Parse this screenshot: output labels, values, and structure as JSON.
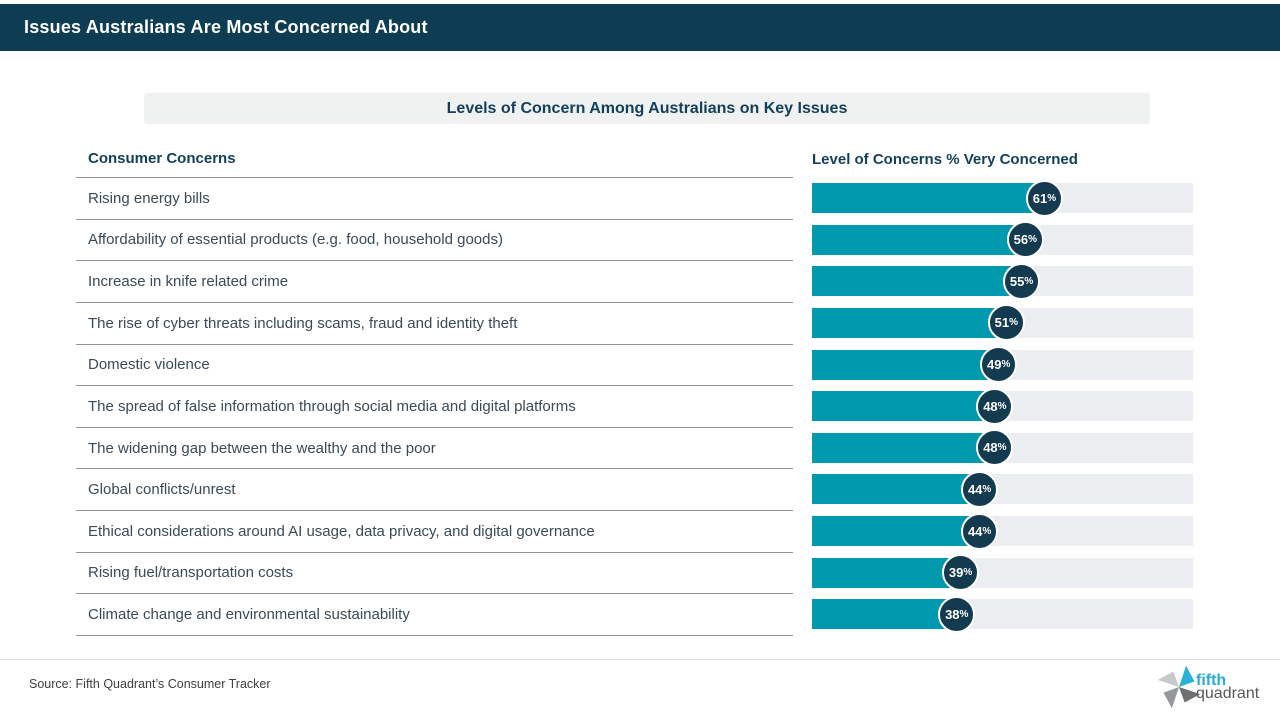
{
  "header": {
    "title": "Issues Australians Are Most Concerned About"
  },
  "chart": {
    "banner_title": "Levels of Concern Among Australians on Key Issues",
    "left_header": "Consumer Concerns",
    "right_header": "Level of Concerns % Very Concerned"
  },
  "chart_data": {
    "type": "bar",
    "orientation": "horizontal",
    "title": "Levels of Concern Among Australians on Key Issues",
    "xlabel": "Level of Concerns % Very Concerned",
    "ylabel": "Consumer Concerns",
    "xlim": [
      0,
      100
    ],
    "value_suffix": "%",
    "categories": [
      "Rising energy bills",
      "Affordability of essential products (e.g. food, household goods)",
      "Increase in knife related crime",
      "The rise of cyber threats including scams, fraud and identity theft",
      "Domestic violence",
      "The spread of false information through social media and digital platforms",
      "The widening gap between the wealthy and the poor",
      "Global conflicts/unrest",
      "Ethical considerations around AI usage, data privacy, and digital governance",
      "Rising fuel/transportation costs",
      "Climate change and environmental sustainability"
    ],
    "values": [
      61,
      56,
      55,
      51,
      49,
      48,
      48,
      44,
      44,
      39,
      38
    ]
  },
  "footer": {
    "source": "Source: Fifth Quadrant’s Consumer Tracker",
    "logo": {
      "line1": "fifth",
      "line2": "quadrant"
    }
  },
  "colors": {
    "header_bg": "#0d3c53",
    "banner_bg": "#f0f1f1",
    "heading_text": "#123f5a",
    "row_text": "#3a4a57",
    "divider": "#8f9194",
    "bar_fill": "#0099ae",
    "bar_track": "#ecedf0",
    "badge_bg": "#143a4f",
    "logo_cyan": "#29abd4",
    "logo_gray": "#57585a"
  }
}
